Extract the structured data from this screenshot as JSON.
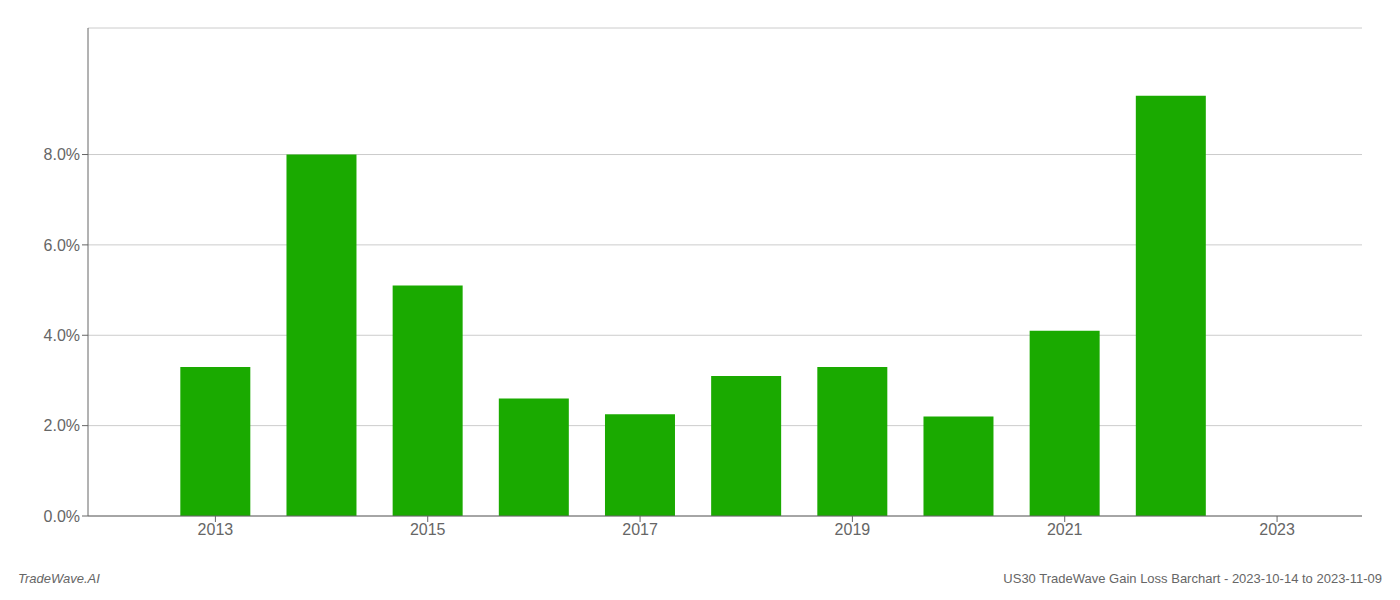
{
  "chart_data": {
    "type": "bar",
    "x": [
      2013,
      2014,
      2015,
      2016,
      2017,
      2018,
      2019,
      2020,
      2021,
      2022
    ],
    "values": [
      0.033,
      0.08,
      0.051,
      0.026,
      0.0225,
      0.031,
      0.033,
      0.022,
      0.041,
      0.093
    ],
    "color": "#1aaa00",
    "xlim": [
      2011.8,
      2023.8
    ],
    "xticks": [
      2013,
      2015,
      2017,
      2019,
      2021,
      2023
    ],
    "ylim": [
      0,
      0.108
    ],
    "yticks": [
      {
        "value": 0.0,
        "label": "0.0%"
      },
      {
        "value": 0.02,
        "label": "2.0%"
      },
      {
        "value": 0.04,
        "label": "4.0%"
      },
      {
        "value": 0.06,
        "label": "6.0%"
      },
      {
        "value": 0.08,
        "label": "8.0%"
      }
    ],
    "grid": true,
    "annotations": [
      "TradeWave.AI",
      "US30 TradeWave Gain Loss Barchart - 2023-10-14 to 2023-11-09"
    ]
  }
}
